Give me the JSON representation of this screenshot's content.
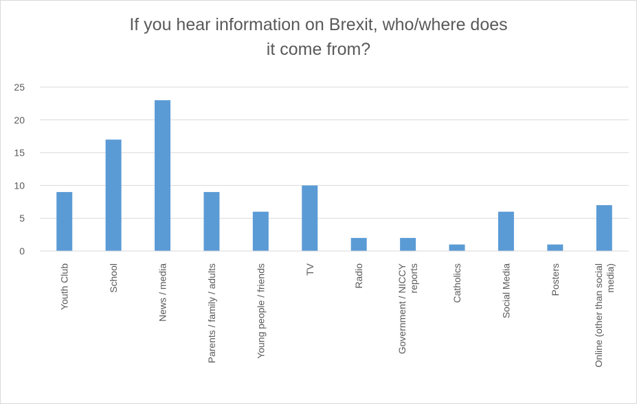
{
  "chart_data": {
    "type": "bar",
    "title_lines": [
      "If you hear information on Brexit, who/where does",
      "it come from?"
    ],
    "categories": [
      [
        "Youth Club"
      ],
      [
        "School"
      ],
      [
        "News / media"
      ],
      [
        "Parents / family / adults"
      ],
      [
        "Young people / friends"
      ],
      [
        "TV"
      ],
      [
        "Radio"
      ],
      [
        "Government / NICCY",
        "reports"
      ],
      [
        "Catholics"
      ],
      [
        "Social Media"
      ],
      [
        "Posters"
      ],
      [
        "Online (other than social",
        "media)"
      ]
    ],
    "values": [
      9,
      17,
      23,
      9,
      6,
      10,
      2,
      2,
      1,
      6,
      1,
      7
    ],
    "ylim": [
      0,
      25
    ],
    "yticks": [
      "0",
      "5",
      "10",
      "15",
      "20",
      "25"
    ],
    "bar_color": "#5b9bd5",
    "grid": true,
    "legend": false
  }
}
